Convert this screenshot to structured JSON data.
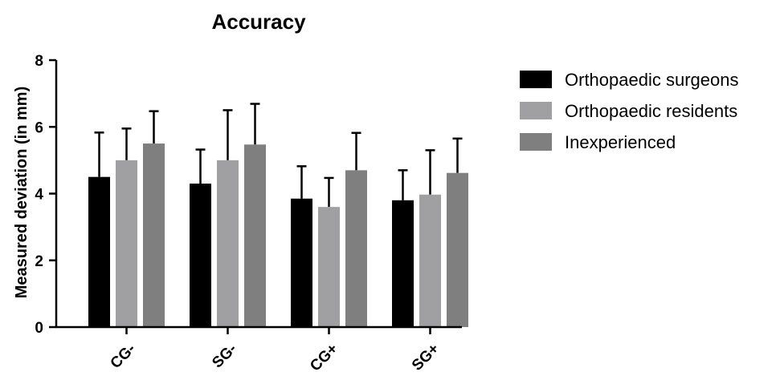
{
  "chart_data": {
    "type": "bar",
    "title": "Accuracy",
    "xlabel": "",
    "ylabel": "Measured deviation (in mm)",
    "ylim": [
      0,
      8
    ],
    "yticks": [
      0,
      2,
      4,
      6,
      8
    ],
    "categories": [
      "CG-",
      "SG-",
      "CG+",
      "SG+"
    ],
    "series": [
      {
        "name": "Orthopaedic surgeons",
        "color": "#000000",
        "values": [
          4.5,
          4.3,
          3.85,
          3.8
        ],
        "error": [
          1.33,
          1.02,
          0.97,
          0.9
        ]
      },
      {
        "name": "Orthopaedic residents",
        "color": "#a0a0a2",
        "values": [
          5.0,
          5.0,
          3.6,
          3.97
        ],
        "error": [
          0.95,
          1.5,
          0.87,
          1.33
        ]
      },
      {
        "name": "Inexperienced",
        "color": "#7f7f7f",
        "values": [
          5.5,
          5.47,
          4.7,
          4.62
        ],
        "error": [
          0.97,
          1.22,
          1.12,
          1.03
        ]
      }
    ],
    "grid": false,
    "legend": "right"
  }
}
